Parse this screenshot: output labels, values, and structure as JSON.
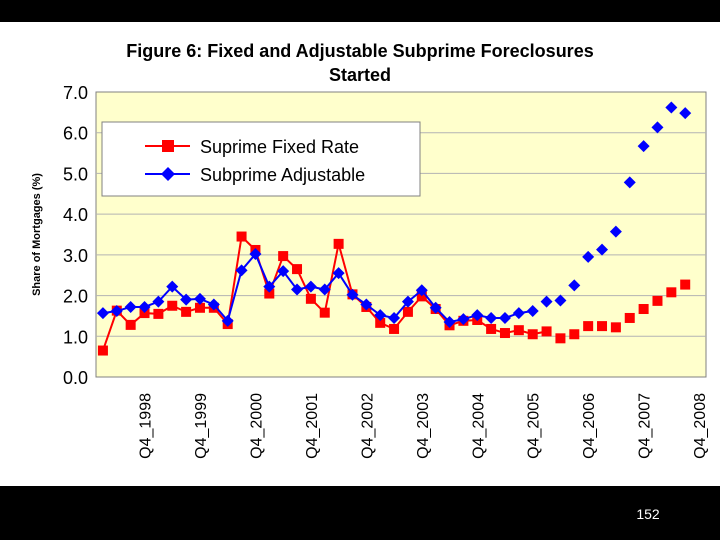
{
  "colors": {
    "plot_background": "#ffffcc",
    "fixed_series": "#ff0000",
    "adjustable_series": "#0000ff"
  },
  "page": {
    "number": "152"
  },
  "chart_data": {
    "type": "line",
    "title": "Figure 6: Fixed and Adjustable Subprime Foreclosures Started",
    "title_lines": [
      "Figure 6: Fixed and Adjustable Subprime Foreclosures",
      "Started"
    ],
    "xlabel": "",
    "ylabel": "Share of Mortgages (%)",
    "ylim": [
      0,
      7
    ],
    "yticks": [
      "0.0",
      "1.0",
      "2.0",
      "3.0",
      "4.0",
      "5.0",
      "6.0",
      "7.0"
    ],
    "x_tick_labels": [
      "Q4_1998",
      "Q4_1999",
      "Q4_2000",
      "Q4_2001",
      "Q4_2002",
      "Q4_2003",
      "Q4_2004",
      "Q4_2005",
      "Q4_2006",
      "Q4_2007",
      "Q4_2008"
    ],
    "x_tick_indices": [
      3,
      7,
      11,
      15,
      19,
      23,
      27,
      31,
      35,
      39,
      43
    ],
    "x_range": [
      -0.5,
      43.5
    ],
    "grid": "horizontal",
    "legend_position": "top-left",
    "series": [
      {
        "name": "Suprime Fixed Rate",
        "marker": "square",
        "values": [
          0.65,
          1.63,
          1.28,
          1.57,
          1.55,
          1.75,
          1.6,
          1.7,
          1.7,
          1.3,
          3.45,
          3.12,
          2.05,
          2.97,
          2.65,
          1.92,
          1.58,
          3.27,
          2.03,
          1.72,
          1.33,
          1.18,
          1.6,
          1.98,
          1.67,
          1.27,
          1.38,
          1.4,
          1.18,
          1.08,
          1.15,
          1.05,
          1.12,
          0.95,
          1.05,
          1.25,
          1.25,
          1.22,
          1.45,
          1.67,
          1.87,
          2.08,
          2.27
        ]
      },
      {
        "name": "Subprime Adjustable",
        "marker": "diamond",
        "values": [
          1.57,
          1.62,
          1.72,
          1.72,
          1.85,
          2.22,
          1.9,
          1.92,
          1.78,
          1.38,
          2.62,
          3.02,
          2.22,
          2.6,
          2.15,
          2.22,
          2.15,
          2.55,
          2.02,
          1.78,
          1.52,
          1.45,
          1.85,
          2.13,
          1.7,
          1.35,
          1.42,
          1.52,
          1.45,
          1.45,
          1.57,
          1.62,
          1.85,
          1.88,
          2.25,
          2.95,
          3.13,
          3.57,
          4.78,
          5.67,
          6.13,
          6.62,
          6.48
        ]
      }
    ]
  }
}
